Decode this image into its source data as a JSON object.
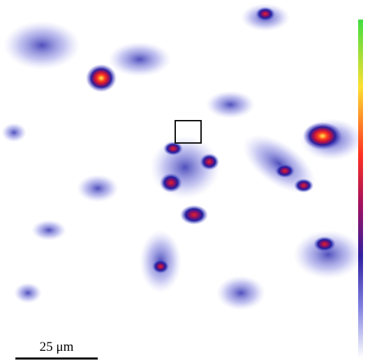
{
  "scale_bar": {
    "label": "25 μm"
  }
}
